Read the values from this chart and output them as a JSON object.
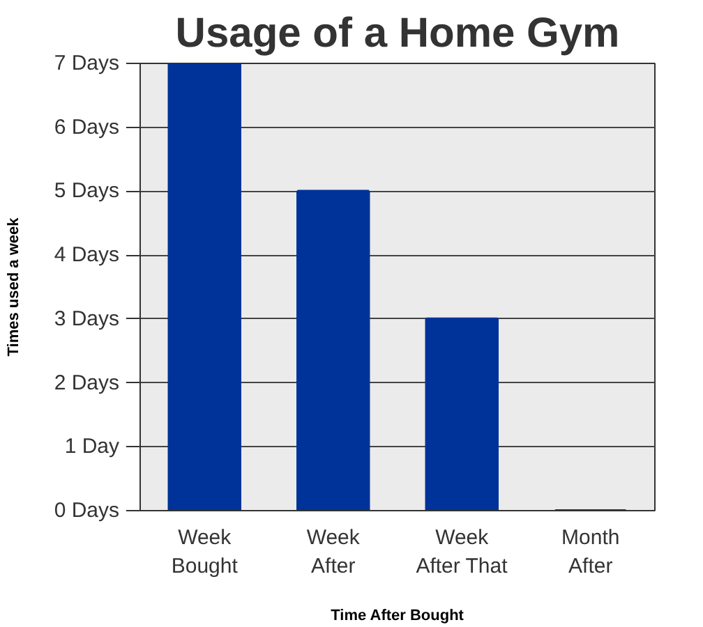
{
  "chart_data": {
    "type": "bar",
    "title": "Usage of a Home Gym",
    "xlabel": "Time After Bought",
    "ylabel": "Times used a week",
    "categories": [
      "Week Bought",
      "Week After",
      "Week After That",
      "Month After"
    ],
    "values": [
      7,
      5,
      3,
      0
    ],
    "color": "#003399",
    "ylim": [
      0,
      7
    ],
    "yticks": [
      {
        "value": 0,
        "label": "0 Days"
      },
      {
        "value": 1,
        "label": "1 Day"
      },
      {
        "value": 2,
        "label": "2 Days"
      },
      {
        "value": 3,
        "label": "3 Days"
      },
      {
        "value": 4,
        "label": "4 Days"
      },
      {
        "value": 5,
        "label": "5 Days"
      },
      {
        "value": 6,
        "label": "6 Days"
      },
      {
        "value": 7,
        "label": "7 Days"
      }
    ],
    "grid": "y"
  }
}
